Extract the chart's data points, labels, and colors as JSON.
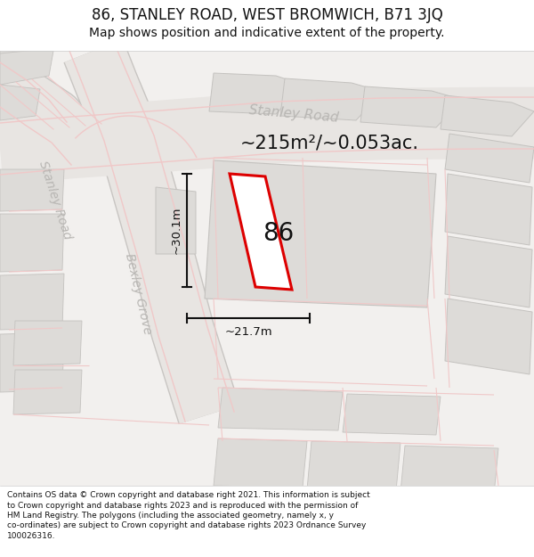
{
  "title": "86, STANLEY ROAD, WEST BROMWICH, B71 3JQ",
  "subtitle": "Map shows position and indicative extent of the property.",
  "area_text": "~215m²/~0.053ac.",
  "label_86": "86",
  "dim_width": "~21.7m",
  "dim_height": "~30.1m",
  "footer_lines": [
    "Contains OS data © Crown copyright and database right 2021. This information is subject",
    "to Crown copyright and database rights 2023 and is reproduced with the permission of",
    "HM Land Registry. The polygons (including the associated geometry, namely x, y",
    "co-ordinates) are subject to Crown copyright and database rights 2023 Ordnance Survey",
    "100026316."
  ],
  "map_bg": "#f2f0ee",
  "road_fill": "#e8e5e2",
  "road_edge": "#c8c5c2",
  "pink": "#e8b0b0",
  "pink_light": "#f0c8c8",
  "building_fill": "#dddbd8",
  "building_edge": "#c4c2bf",
  "prop_fill": "#ffffff",
  "prop_edge": "#cc0000",
  "road_label": "#b8b6b3",
  "dim_color": "#111111",
  "title_color": "#111111"
}
